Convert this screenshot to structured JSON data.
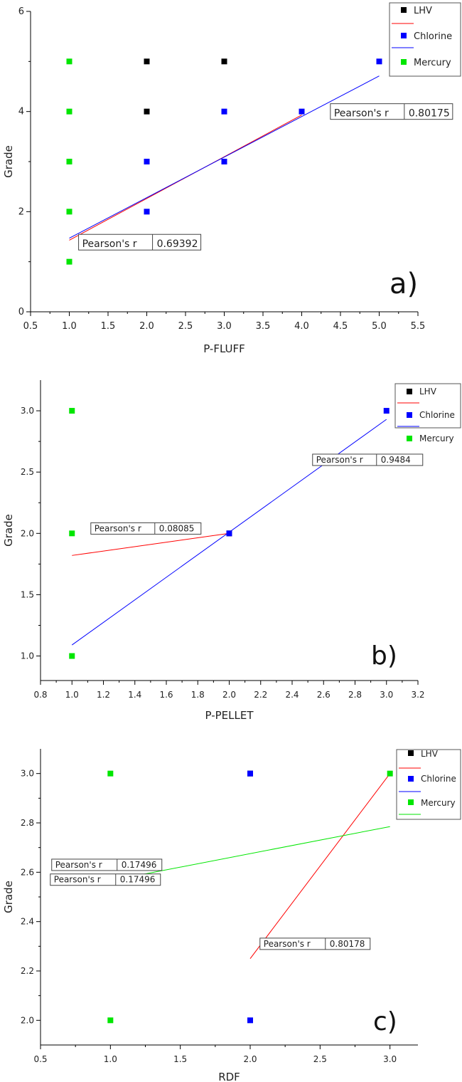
{
  "chart_data": [
    {
      "type": "scatter",
      "panel_label": "a)",
      "xlabel": "P-FLUFF",
      "ylabel": "Grade",
      "xlim": [
        0.5,
        5.5
      ],
      "ylim": [
        0,
        6
      ],
      "xticks": [
        "0.5",
        "1.0",
        "1.5",
        "2.0",
        "2.5",
        "3.0",
        "3.5",
        "4.0",
        "4.5",
        "5.0",
        "5.5"
      ],
      "yticks": [
        "0",
        "2",
        "4",
        "6"
      ],
      "legend": {
        "placement": "top-right",
        "entries": [
          {
            "name": "LHV",
            "color": "#000000",
            "line_color": "#ff0000"
          },
          {
            "name": "Chlorine",
            "color": "#0000ff",
            "line_color": "#0000ff"
          },
          {
            "name": "Mercury",
            "color": "#00e600",
            "line_color": ""
          }
        ]
      },
      "series": [
        {
          "name": "LHV",
          "color": "#000000",
          "points": [
            [
              2,
              5
            ],
            [
              2,
              4
            ],
            [
              3,
              5
            ]
          ]
        },
        {
          "name": "Chlorine",
          "color": "#0000ff",
          "points": [
            [
              2,
              3
            ],
            [
              2,
              2
            ],
            [
              3,
              4
            ],
            [
              3,
              3
            ],
            [
              4,
              4
            ],
            [
              5,
              5
            ]
          ]
        },
        {
          "name": "Mercury",
          "color": "#00e600",
          "points": [
            [
              1,
              5
            ],
            [
              1,
              4
            ],
            [
              1,
              3
            ],
            [
              1,
              2
            ],
            [
              1,
              1
            ]
          ]
        }
      ],
      "fit_lines": [
        {
          "series": "LHV",
          "color": "#ff0000",
          "from": [
            1.0,
            1.43
          ],
          "to": [
            4.0,
            3.93
          ]
        },
        {
          "series": "Chlorine",
          "color": "#0000ff",
          "from": [
            1.0,
            1.47
          ],
          "to": [
            5.0,
            4.71
          ]
        }
      ],
      "pearson_boxes": [
        {
          "label": "Pearson's r",
          "value": "0.80175",
          "anchor": [
            4.37,
            4.0
          ]
        },
        {
          "label": "Pearson's r",
          "value": "0.69392",
          "anchor": [
            1.12,
            1.39
          ]
        }
      ]
    },
    {
      "type": "scatter",
      "panel_label": "b)",
      "xlabel": "P-PELLET",
      "ylabel": "Grade",
      "xlim": [
        0.8,
        3.2
      ],
      "ylim": [
        0.8,
        3.25
      ],
      "xticks": [
        "0.8",
        "1.0",
        "1.2",
        "1.4",
        "1.6",
        "1.8",
        "2.0",
        "2.2",
        "2.4",
        "2.6",
        "2.8",
        "3.0",
        "3.2"
      ],
      "yticks": [
        "1.0",
        "1.5",
        "2.0",
        "2.5",
        "3.0"
      ],
      "legend": {
        "placement": "top-right",
        "entries": [
          {
            "name": "LHV",
            "color": "#000000",
            "line_color": "#ff0000"
          },
          {
            "name": "Chlorine",
            "color": "#0000ff",
            "line_color": "#0000ff"
          },
          {
            "name": "Mercury",
            "color": "#00e600",
            "line_color": ""
          }
        ]
      },
      "series": [
        {
          "name": "LHV",
          "color": "#000000",
          "points": [
            [
              2,
              2
            ]
          ]
        },
        {
          "name": "Chlorine",
          "color": "#0000ff",
          "points": [
            [
              2,
              2
            ],
            [
              3,
              3
            ]
          ]
        },
        {
          "name": "Mercury",
          "color": "#00e600",
          "points": [
            [
              1,
              3
            ],
            [
              1,
              2
            ],
            [
              1,
              1
            ]
          ]
        }
      ],
      "fit_lines": [
        {
          "series": "LHV",
          "color": "#ff0000",
          "from": [
            1.0,
            1.82
          ],
          "to": [
            2.0,
            2.0
          ]
        },
        {
          "series": "Chlorine",
          "color": "#0000ff",
          "from": [
            1.0,
            1.09
          ],
          "to": [
            3.0,
            2.93
          ]
        }
      ],
      "pearson_boxes": [
        {
          "label": "Pearson's r",
          "value": "0.08085",
          "anchor": [
            1.12,
            2.04
          ]
        },
        {
          "label": "Pearson's r",
          "value": "0.9484",
          "anchor": [
            2.53,
            2.6
          ]
        }
      ]
    },
    {
      "type": "scatter",
      "panel_label": "c)",
      "xlabel": "RDF",
      "ylabel": "Grade",
      "xlim": [
        0.5,
        3.2
      ],
      "ylim": [
        1.9,
        3.1
      ],
      "xticks": [
        "0.5",
        "1.0",
        "1.5",
        "2.0",
        "2.5",
        "3.0"
      ],
      "yticks": [
        "2.0",
        "2.2",
        "2.4",
        "2.6",
        "2.8",
        "3.0"
      ],
      "legend": {
        "placement": "top-right",
        "entries": [
          {
            "name": "LHV",
            "color": "#000000",
            "line_color": "#ff0000"
          },
          {
            "name": "Chlorine",
            "color": "#0000ff",
            "line_color": "#0000ff"
          },
          {
            "name": "Mercury",
            "color": "#00e600",
            "line_color": "#00e600"
          }
        ]
      },
      "series": [
        {
          "name": "LHV",
          "color": "#000000",
          "points": [
            [
              2,
              3
            ]
          ]
        },
        {
          "name": "Chlorine",
          "color": "#0000ff",
          "points": [
            [
              2,
              3
            ],
            [
              2,
              2
            ]
          ]
        },
        {
          "name": "Mercury",
          "color": "#00e600",
          "points": [
            [
              1,
              3
            ],
            [
              1,
              2
            ],
            [
              3,
              3
            ]
          ]
        }
      ],
      "fit_lines": [
        {
          "series": "LHV",
          "color": "#ff0000",
          "from": [
            2.0,
            2.25
          ],
          "to": [
            3.0,
            3.0
          ]
        },
        {
          "series": "Mercury",
          "color": "#00e600",
          "from": [
            1.0,
            2.566
          ],
          "to": [
            3.0,
            2.785
          ]
        }
      ],
      "pearson_boxes": [
        {
          "label": "Pearson's r",
          "value": "0.17496",
          "anchor": [
            0.58,
            2.63
          ]
        },
        {
          "label": "Pearson's r",
          "value": "0.17496",
          "anchor": [
            0.57,
            2.57
          ]
        },
        {
          "label": "Pearson's r",
          "value": "0.80178",
          "anchor": [
            2.07,
            2.31
          ]
        }
      ]
    }
  ]
}
